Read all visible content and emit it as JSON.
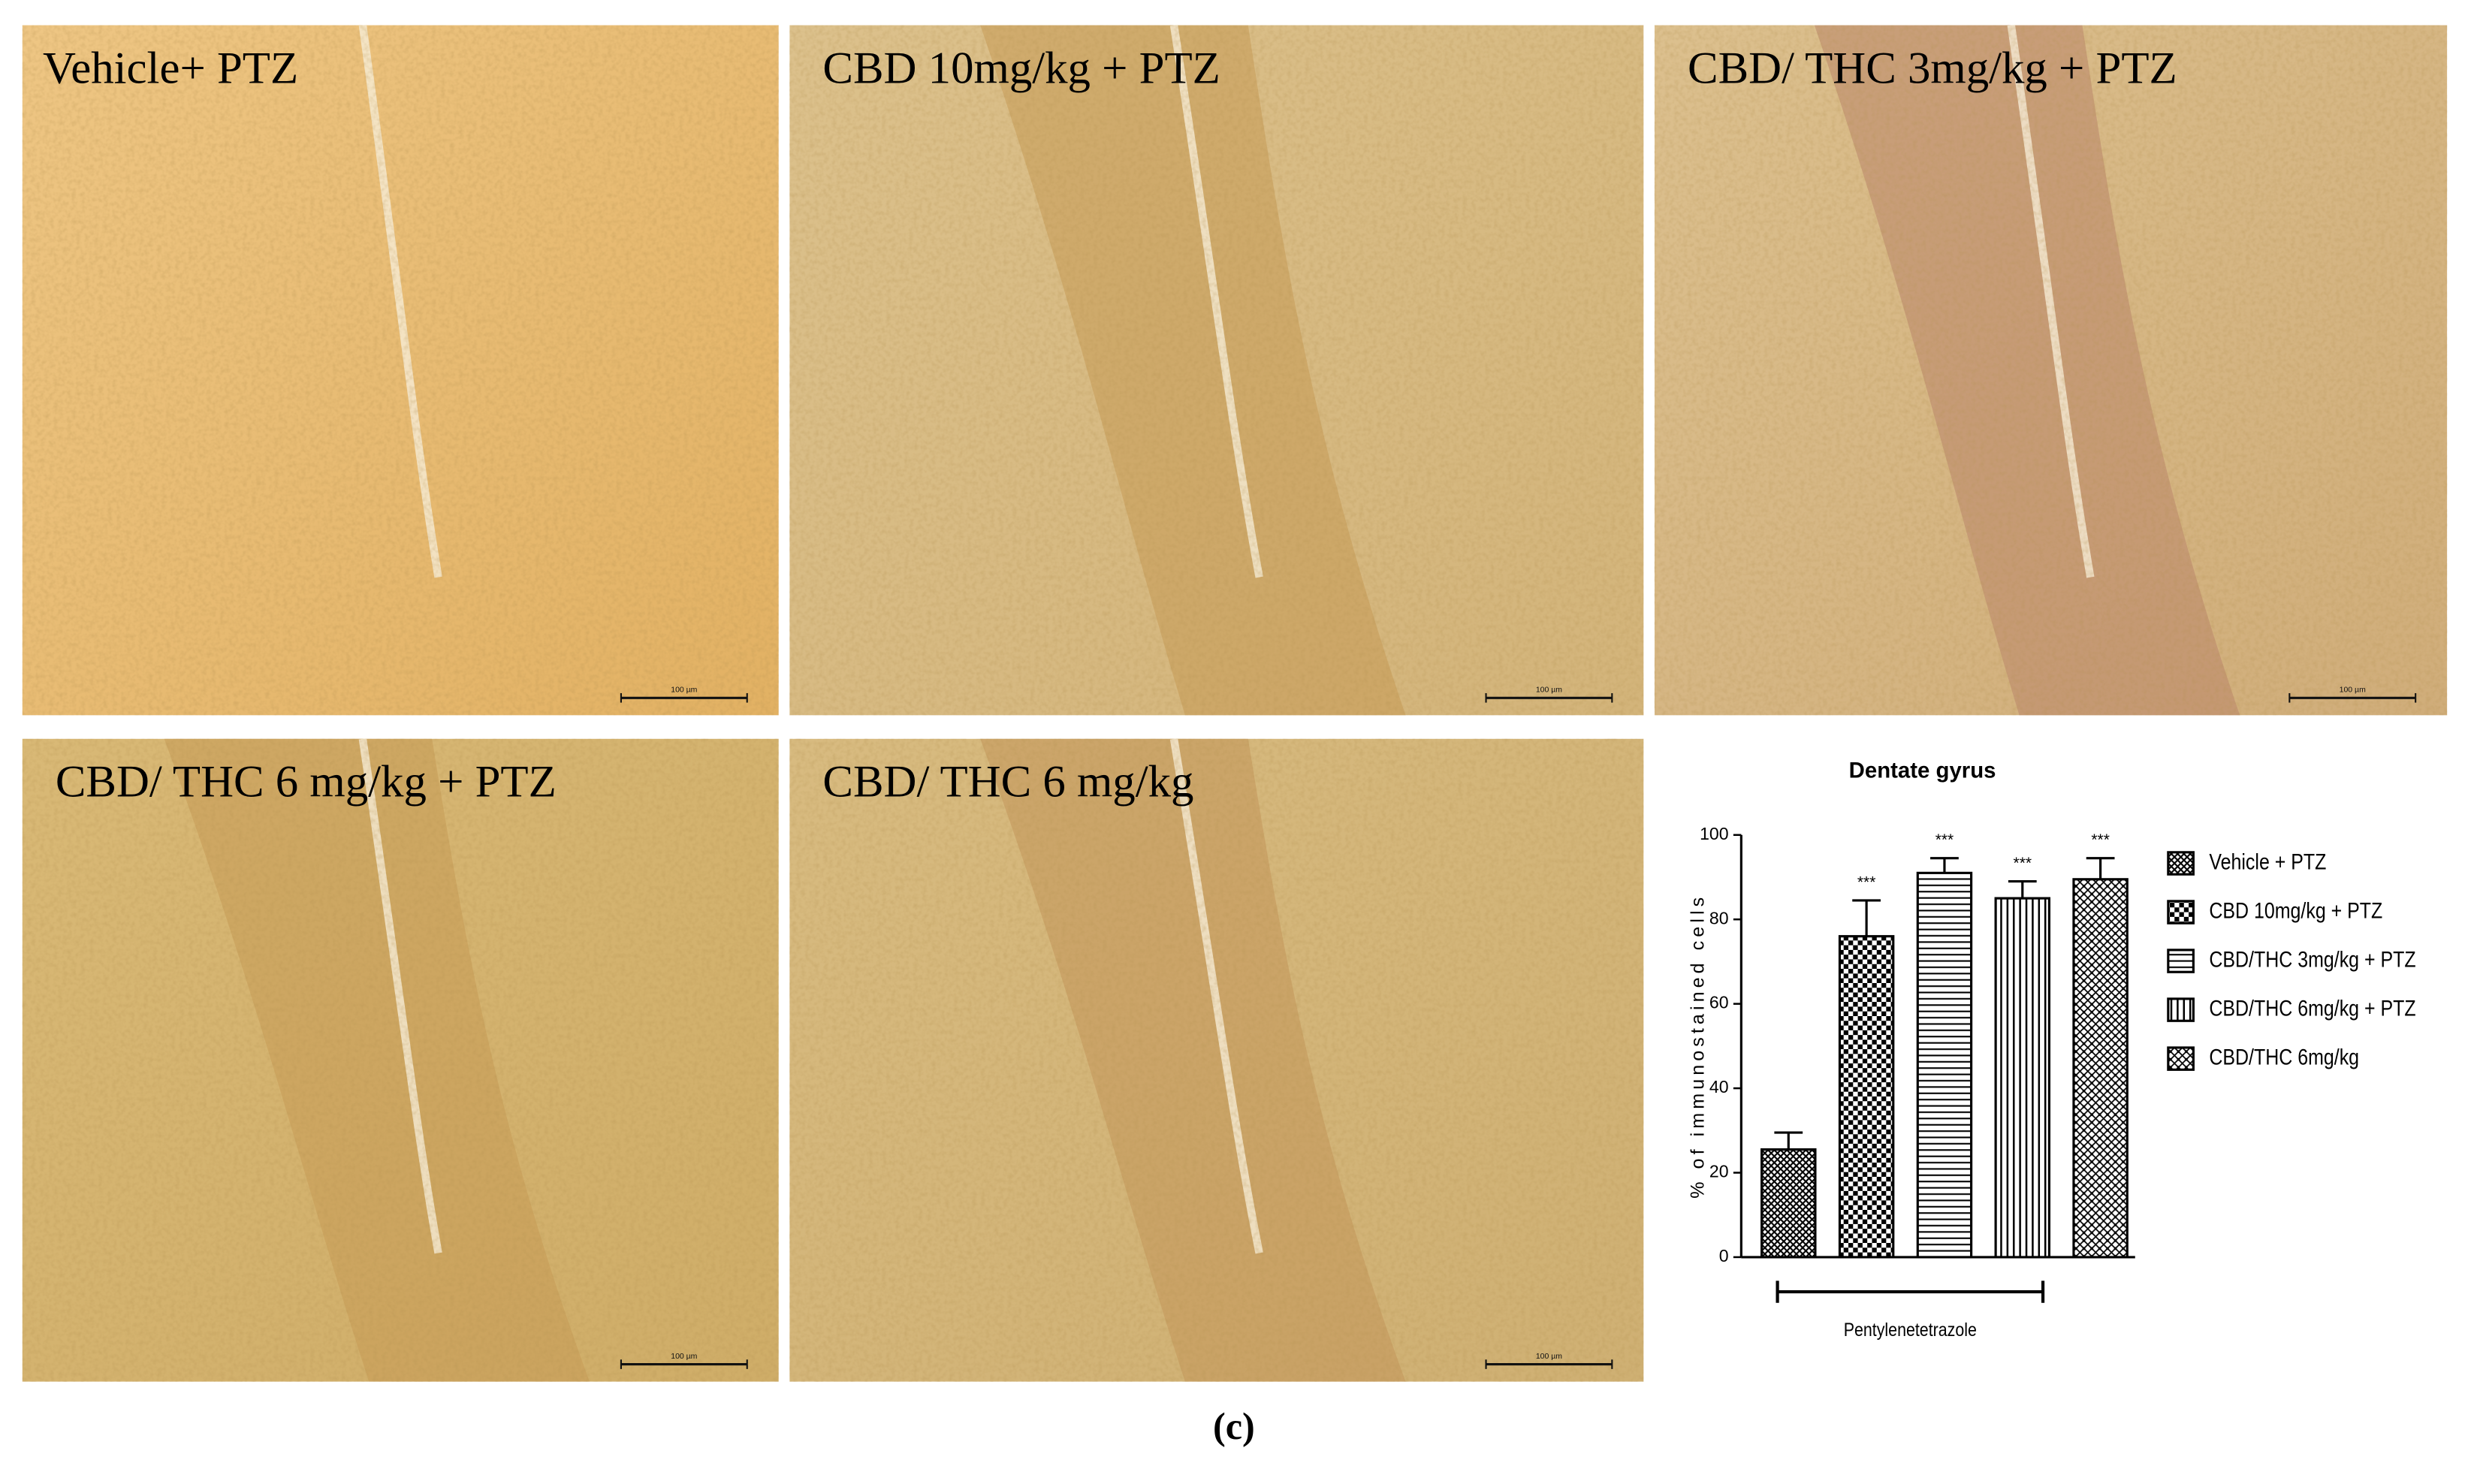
{
  "panels": [
    {
      "label": "Vehicle+ PTZ",
      "scale_bar": "100 µm"
    },
    {
      "label": "CBD 10mg/kg + PTZ",
      "scale_bar": "100 µm"
    },
    {
      "label": "CBD/ THC 3mg/kg + PTZ",
      "scale_bar": "100 µm"
    },
    {
      "label": "CBD/ THC 6 mg/kg + PTZ",
      "scale_bar": "100 µm"
    },
    {
      "label": "CBD/ THC 6 mg/kg",
      "scale_bar": "100 µm"
    }
  ],
  "caption": "(c)",
  "chart_data": {
    "type": "bar",
    "title": "Dentate gyrus",
    "y_label": "% of immunostained cells",
    "categories": [
      "Vehicle + PTZ",
      "CBD 10mg/kg + PTZ",
      "CBD/THC 3mg/kg + PTZ",
      "CBD/THC 6mg/kg + PTZ",
      "CBD/THC 6mg/kg"
    ],
    "values": [
      25.5,
      76,
      91,
      85,
      89.5
    ],
    "errors": [
      4,
      8.5,
      3.5,
      4,
      5
    ],
    "significance": [
      null,
      "***",
      "***",
      "***",
      "***"
    ],
    "patterns": [
      "crosshatch",
      "checker",
      "horizontal",
      "vertical",
      "diagonal"
    ],
    "group_label": "Pentylenetetrazole",
    "ylim": [
      0,
      100
    ],
    "yticks": [
      0,
      20,
      40,
      60,
      80,
      100
    ],
    "legend": "right",
    "grid": false
  }
}
